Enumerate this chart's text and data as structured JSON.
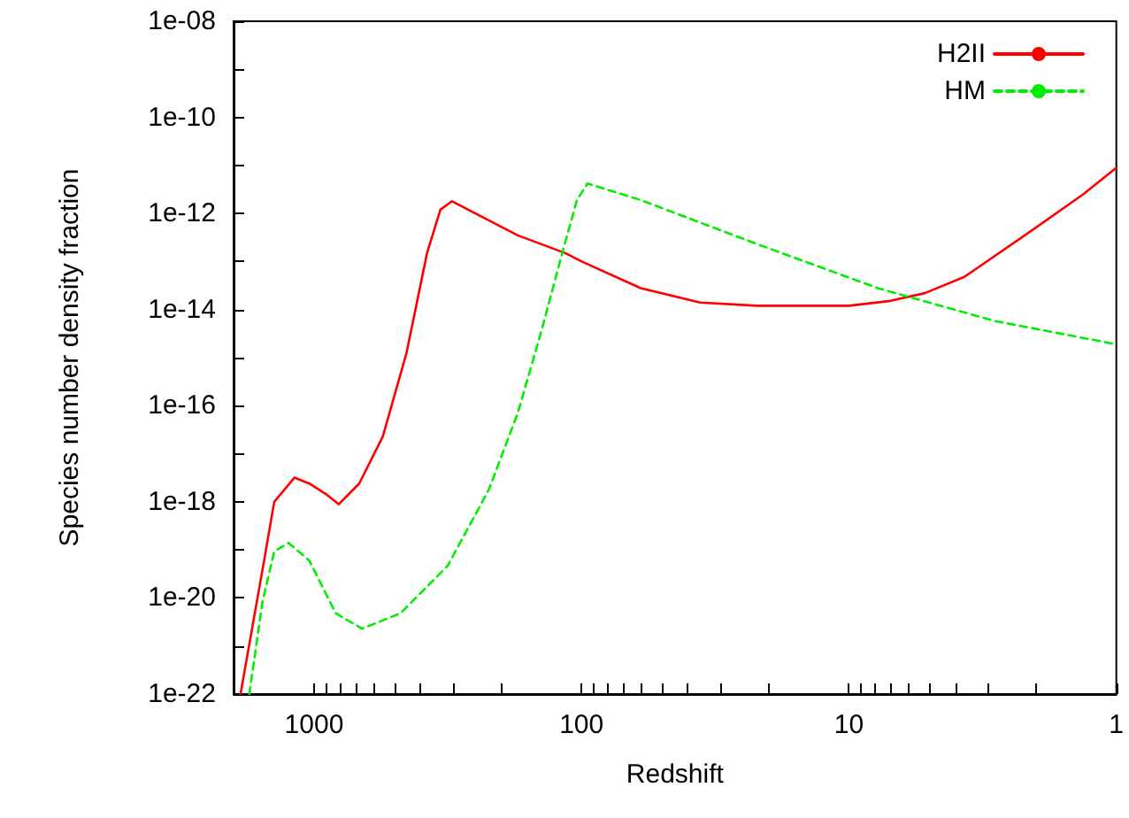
{
  "chart_data": {
    "type": "line",
    "xlabel": "Redshift",
    "ylabel": "Species number density fraction",
    "log": "xy",
    "grid": false,
    "legend": "top right",
    "marker": "none",
    "xlim": [
      2000,
      1
    ],
    "xticks": [
      {
        "value": 2000,
        "label": null
      },
      {
        "value": 1000,
        "label": "1000"
      },
      {
        "value": 900,
        "label": null
      },
      {
        "value": 800,
        "label": null
      },
      {
        "value": 700,
        "label": null
      },
      {
        "value": 600,
        "label": null
      },
      {
        "value": 500,
        "label": null
      },
      {
        "value": 400,
        "label": null
      },
      {
        "value": 300,
        "label": null
      },
      {
        "value": 200,
        "label": null
      },
      {
        "value": 100,
        "label": "100"
      },
      {
        "value": 90,
        "label": null
      },
      {
        "value": 80,
        "label": null
      },
      {
        "value": 70,
        "label": null
      },
      {
        "value": 60,
        "label": null
      },
      {
        "value": 50,
        "label": null
      },
      {
        "value": 40,
        "label": null
      },
      {
        "value": 30,
        "label": null
      },
      {
        "value": 20,
        "label": null
      },
      {
        "value": 10,
        "label": "10"
      },
      {
        "value": 9,
        "label": null
      },
      {
        "value": 8,
        "label": null
      },
      {
        "value": 7,
        "label": null
      },
      {
        "value": 6,
        "label": null
      },
      {
        "value": 5,
        "label": null
      },
      {
        "value": 4,
        "label": null
      },
      {
        "value": 3,
        "label": null
      },
      {
        "value": 2,
        "label": null
      },
      {
        "value": 1,
        "label": "1"
      }
    ],
    "ylim": [
      1e-22,
      1e-08
    ],
    "yticks": [
      {
        "value": 1e-22,
        "label": "1e-22"
      },
      {
        "value": 1e-21,
        "label": null
      },
      {
        "value": 1e-20,
        "label": "1e-20"
      },
      {
        "value": 1e-19,
        "label": null
      },
      {
        "value": 1e-18,
        "label": "1e-18"
      },
      {
        "value": 1e-17,
        "label": null
      },
      {
        "value": 1e-16,
        "label": "1e-16"
      },
      {
        "value": 1e-15,
        "label": null
      },
      {
        "value": 1e-14,
        "label": "1e-14"
      },
      {
        "value": 1e-13,
        "label": null
      },
      {
        "value": 1e-12,
        "label": "1e-12"
      },
      {
        "value": 1e-11,
        "label": null
      },
      {
        "value": 1e-10,
        "label": "1e-10"
      },
      {
        "value": 1e-09,
        "label": null
      },
      {
        "value": 1e-08,
        "label": "1e-08"
      }
    ],
    "series": [
      {
        "name": "H2II",
        "color": "#ff0000",
        "line_style": "solid",
        "x": [
          1884,
          1538,
          1409,
          1183,
          1042,
          895,
          809,
          678,
          553,
          452,
          378,
          337,
          305,
          173,
          115,
          99,
          60,
          36,
          22,
          10,
          7.1,
          5.2,
          3.7,
          2.2,
          1.33,
          1
        ],
        "values": [
          1e-22,
          6e-20,
          1e-18,
          3.2e-18,
          2.4e-18,
          1.4e-18,
          8.9e-19,
          2.4e-18,
          2.3e-17,
          1.2e-15,
          1.5e-13,
          1.2e-12,
          1.8e-12,
          3.5e-13,
          1.5e-13,
          9.8e-14,
          2.8e-14,
          1.4e-14,
          1.2e-14,
          1.2e-14,
          1.5e-14,
          2.2e-14,
          4.8e-14,
          3.5e-13,
          2.5e-12,
          8.9e-12
        ]
      },
      {
        "name": "HM",
        "color": "#00ee00",
        "line_style": "dashed",
        "x": [
          1746,
          1560,
          1409,
          1245,
          1042,
          830,
          661,
          475,
          317,
          222,
          173,
          141,
          118,
          104,
          95,
          60,
          22,
          7.8,
          2.85,
          1
        ],
        "values": [
          1e-22,
          8.3e-21,
          9.3e-20,
          1.4e-19,
          6e-20,
          4.8e-21,
          2.3e-21,
          4.8e-21,
          4.6e-20,
          1.8e-18,
          7.1e-17,
          3.7e-15,
          1.5e-13,
          1.9e-12,
          4.2e-12,
          1.9e-12,
          2.3e-13,
          2.8e-14,
          5.8e-15,
          1.9e-15
        ]
      }
    ]
  }
}
